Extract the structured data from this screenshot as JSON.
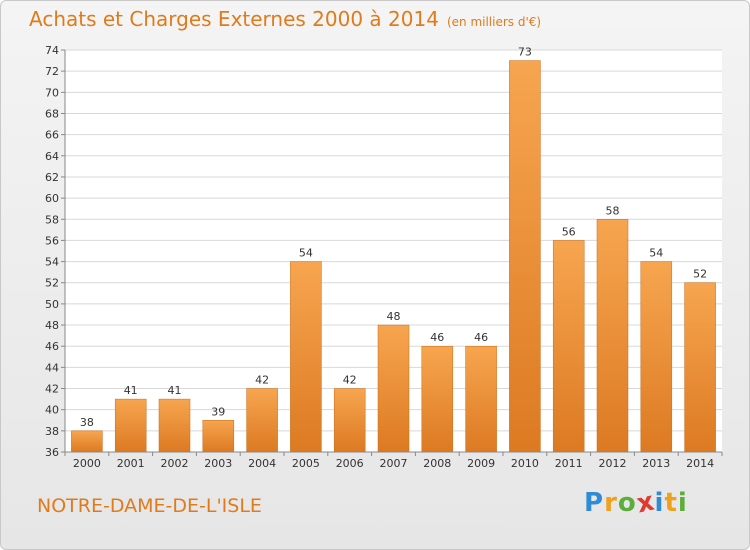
{
  "header": {
    "title": "Achats et Charges Externes 2000 à 2014",
    "unit": "(en milliers d'€)"
  },
  "footer": {
    "place": "NOTRE-DAME-DE-L'ISLE",
    "logo": {
      "letters": [
        "P",
        "r",
        "o",
        "x",
        "i",
        "t",
        "i"
      ],
      "colors": [
        "#2e8bd6",
        "#f0a11c",
        "#5cae3b",
        "#e03a2f",
        "#2e8bd6",
        "#f0a11c",
        "#5cae3b"
      ]
    }
  },
  "chart_data": {
    "type": "bar",
    "categories": [
      "2000",
      "2001",
      "2002",
      "2003",
      "2004",
      "2005",
      "2006",
      "2007",
      "2008",
      "2009",
      "2010",
      "2011",
      "2012",
      "2013",
      "2014"
    ],
    "values": [
      38,
      41,
      41,
      39,
      42,
      54,
      42,
      48,
      46,
      46,
      73,
      56,
      58,
      54,
      52
    ],
    "title": "Achats et Charges Externes 2000 à 2014",
    "ylim": [
      36,
      74
    ],
    "yticks": [
      36,
      38,
      40,
      42,
      44,
      46,
      48,
      50,
      52,
      54,
      56,
      58,
      60,
      62,
      64,
      66,
      68,
      70,
      72,
      74
    ],
    "grid": true,
    "bar_color": "#f0983a",
    "data_labels": true
  }
}
